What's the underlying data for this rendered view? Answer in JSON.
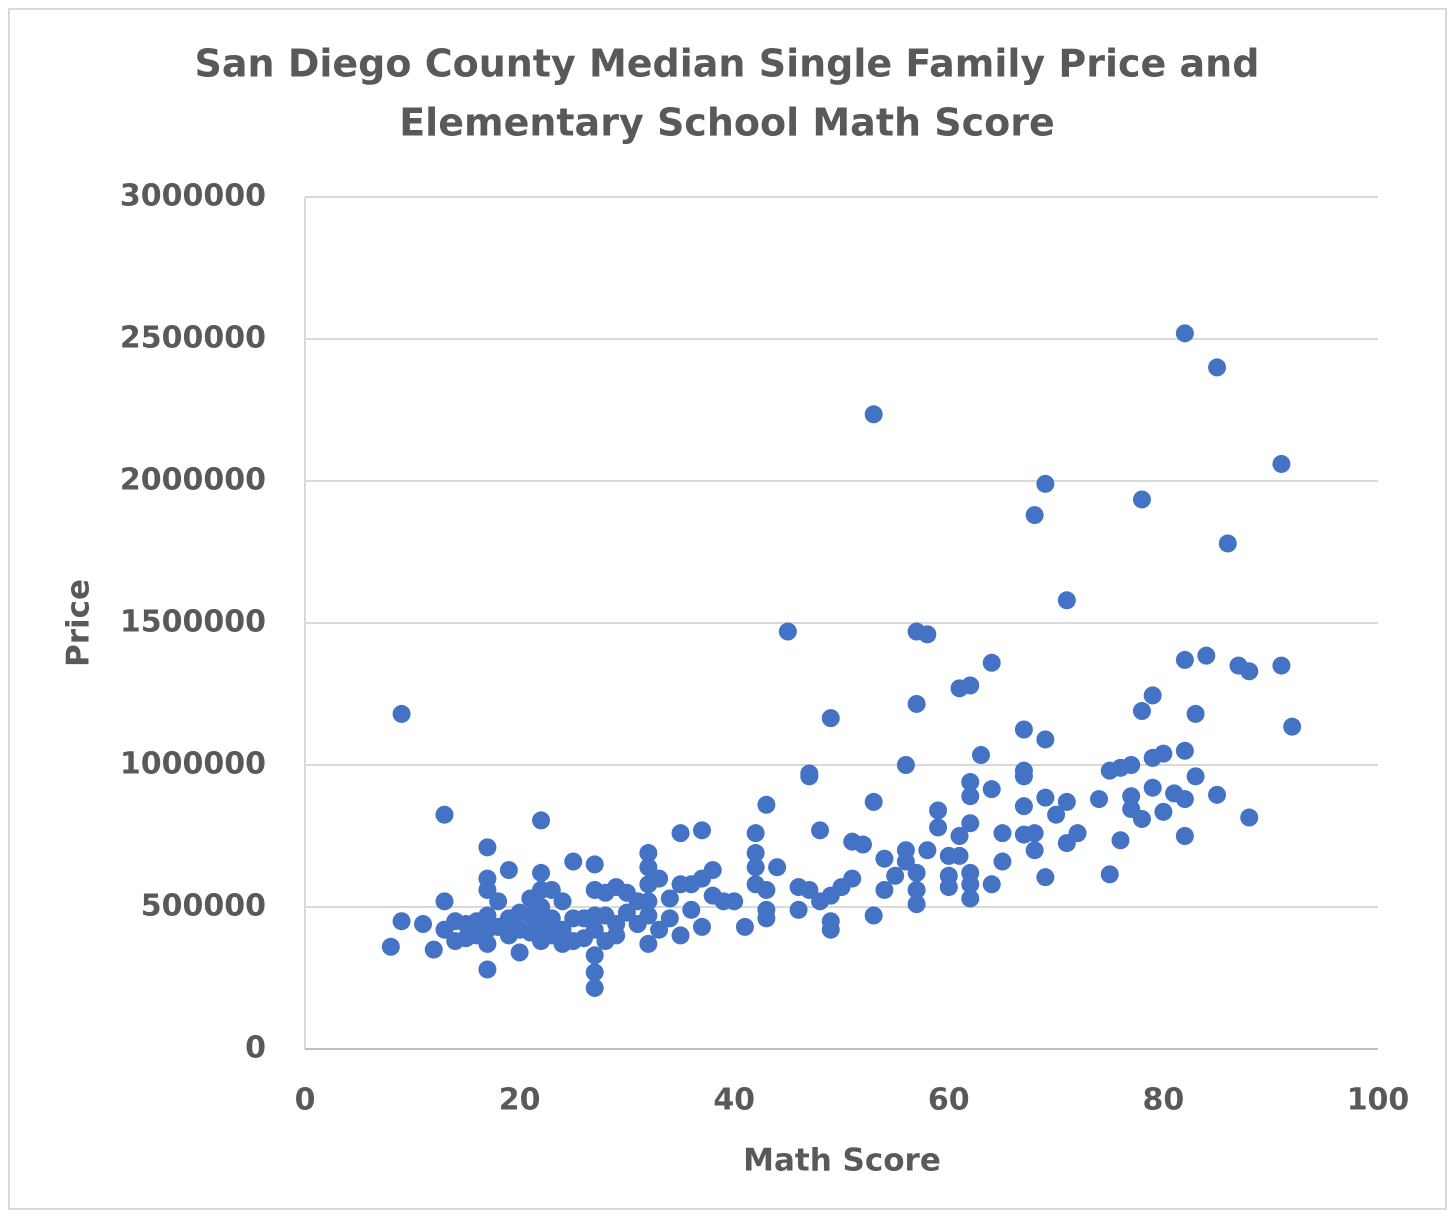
{
  "chart_data": {
    "type": "scatter",
    "title": "San Diego County Median Single Family Price and",
    "subtitle": "Elementary School Math Score",
    "x_label": "Math Score",
    "y_label": "Price",
    "color": "#4472c4",
    "grid": true,
    "xlim": [
      0,
      100
    ],
    "xticks": [
      0,
      20,
      40,
      60,
      80,
      100
    ],
    "ylim": [
      0,
      3000000
    ],
    "yticks": [
      0,
      500000,
      1000000,
      1500000,
      2000000,
      2500000,
      3000000
    ],
    "x": [
      9,
      13,
      22,
      45,
      53,
      57,
      58,
      57,
      49,
      61,
      62,
      64,
      67,
      69,
      68,
      69,
      71,
      78,
      82,
      85,
      86,
      91,
      82,
      84,
      87,
      88,
      91,
      92,
      78,
      79,
      83,
      82,
      80,
      79,
      77,
      76,
      75,
      88,
      85,
      83,
      81,
      82,
      82,
      80,
      79,
      78,
      77,
      77,
      76,
      75,
      74,
      72,
      71,
      71,
      70,
      69,
      69,
      68,
      68,
      67,
      67,
      67,
      67,
      65,
      65,
      64,
      64,
      63,
      62,
      62,
      62,
      61,
      61,
      62,
      62,
      62,
      60,
      60,
      60,
      59,
      59,
      58,
      57,
      57,
      57,
      56,
      56,
      56,
      55,
      54,
      54,
      53,
      53,
      52,
      51,
      51,
      50,
      49,
      49,
      49,
      48,
      48,
      47,
      47,
      47,
      46,
      46,
      44,
      43,
      43,
      43,
      43,
      42,
      42,
      42,
      42,
      41,
      40,
      39,
      38,
      38,
      37,
      37,
      37,
      36,
      36,
      35,
      35,
      35,
      34,
      34,
      33,
      33,
      32,
      32,
      32,
      32,
      32,
      32,
      31,
      31,
      30,
      30,
      29,
      29,
      29,
      28,
      28,
      28,
      27,
      27,
      27,
      27,
      27,
      27,
      27,
      26,
      26,
      25,
      25,
      25,
      24,
      24,
      24,
      23,
      23,
      23,
      22,
      22,
      22,
      22,
      22,
      21,
      21,
      21,
      20,
      20,
      20,
      19,
      19,
      19,
      18,
      18,
      17,
      17,
      17,
      17,
      17,
      17,
      17,
      16,
      16,
      15,
      15,
      14,
      14,
      13,
      13,
      12,
      11,
      9,
      8
    ],
    "values": [
      1180000,
      825000,
      805000,
      1470000,
      2235000,
      1470000,
      1460000,
      1215000,
      1165000,
      1270000,
      1280000,
      1360000,
      1125000,
      1090000,
      1880000,
      1990000,
      1580000,
      1935000,
      2520000,
      2400000,
      1780000,
      2060000,
      1370000,
      1385000,
      1350000,
      1330000,
      1350000,
      1135000,
      1190000,
      1245000,
      1180000,
      1050000,
      1040000,
      1025000,
      1000000,
      990000,
      980000,
      815000,
      895000,
      960000,
      900000,
      880000,
      750000,
      835000,
      920000,
      810000,
      890000,
      845000,
      735000,
      615000,
      880000,
      760000,
      870000,
      725000,
      825000,
      885000,
      605000,
      760000,
      700000,
      980000,
      960000,
      855000,
      755000,
      760000,
      660000,
      915000,
      580000,
      1035000,
      940000,
      890000,
      795000,
      750000,
      680000,
      620000,
      580000,
      530000,
      680000,
      610000,
      570000,
      840000,
      780000,
      700000,
      620000,
      560000,
      510000,
      1000000,
      700000,
      660000,
      610000,
      670000,
      560000,
      870000,
      470000,
      720000,
      730000,
      600000,
      570000,
      540000,
      450000,
      420000,
      770000,
      520000,
      970000,
      960000,
      560000,
      570000,
      490000,
      640000,
      860000,
      560000,
      490000,
      460000,
      760000,
      690000,
      640000,
      580000,
      430000,
      520000,
      520000,
      630000,
      540000,
      770000,
      600000,
      430000,
      580000,
      490000,
      760000,
      580000,
      400000,
      530000,
      460000,
      600000,
      420000,
      690000,
      640000,
      580000,
      520000,
      470000,
      370000,
      520000,
      440000,
      550000,
      480000,
      570000,
      440000,
      400000,
      550000,
      470000,
      380000,
      650000,
      560000,
      470000,
      420000,
      330000,
      270000,
      215000,
      460000,
      390000,
      660000,
      460000,
      380000,
      520000,
      420000,
      370000,
      560000,
      460000,
      400000,
      620000,
      560000,
      500000,
      440000,
      380000,
      530000,
      470000,
      410000,
      480000,
      420000,
      340000,
      630000,
      460000,
      400000,
      520000,
      430000,
      710000,
      600000,
      560000,
      470000,
      420000,
      370000,
      280000,
      450000,
      400000,
      440000,
      390000,
      450000,
      380000,
      520000,
      420000,
      350000,
      440000,
      450000,
      360000
    ]
  }
}
